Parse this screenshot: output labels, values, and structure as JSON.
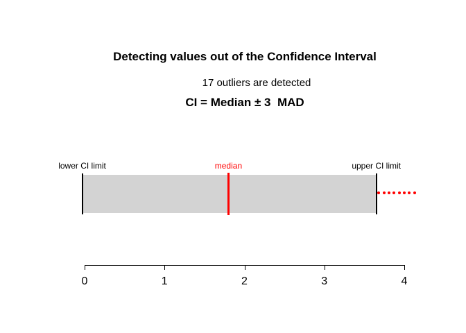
{
  "chart_data": {
    "type": "scatter",
    "title": "Detecting values out of the Confidence Interval",
    "subtitle": "CI = Median ± 3  MAD",
    "annotation": "17 outliers are detected",
    "outliers_detected_count": 17,
    "xlabel": "",
    "ylabel": "",
    "xlim": [
      0,
      4
    ],
    "x_ticks": [
      0,
      1,
      2,
      3,
      4
    ],
    "grid": false,
    "legend": false,
    "interval": {
      "lower_ci": -0.03,
      "median": 1.8,
      "upper_ci": 3.65,
      "labels": {
        "lower": "lower CI limit",
        "median": "median",
        "upper": "upper CI limit"
      }
    },
    "outlier_points_x": [
      3.68,
      3.75,
      3.81,
      3.87,
      3.94,
      4.0,
      4.06,
      4.13
    ],
    "colors": {
      "interval_fill": "#d3d3d3",
      "interval_edge": "#000000",
      "median_line": "#ff0000",
      "outlier_points": "#ff0000",
      "axis": "#000000",
      "text": "#000000"
    }
  }
}
